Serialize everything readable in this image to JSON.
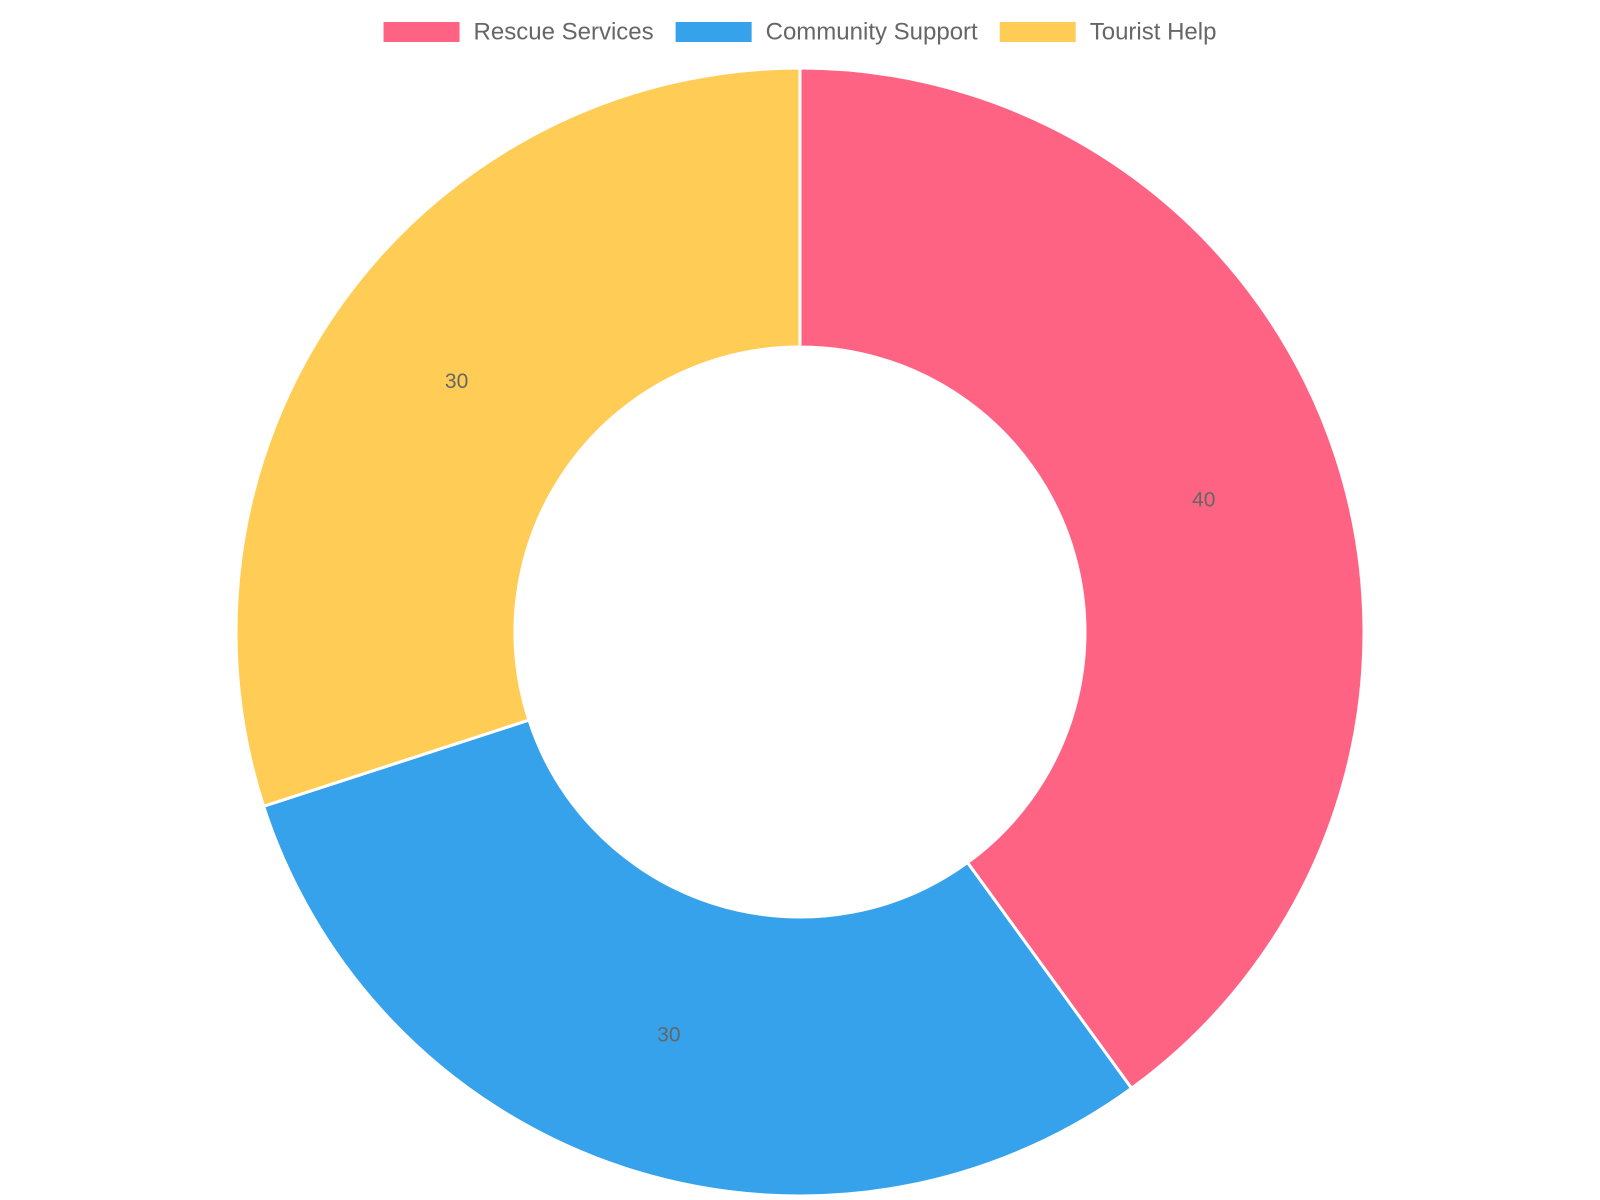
{
  "chart_data": {
    "type": "doughnut",
    "categories": [
      "Rescue Services",
      "Community Support",
      "Tourist Help"
    ],
    "values": [
      40,
      30,
      30
    ],
    "colors": [
      "#ff6384",
      "#36a2eb",
      "#ffcd56"
    ],
    "legend": "top"
  }
}
